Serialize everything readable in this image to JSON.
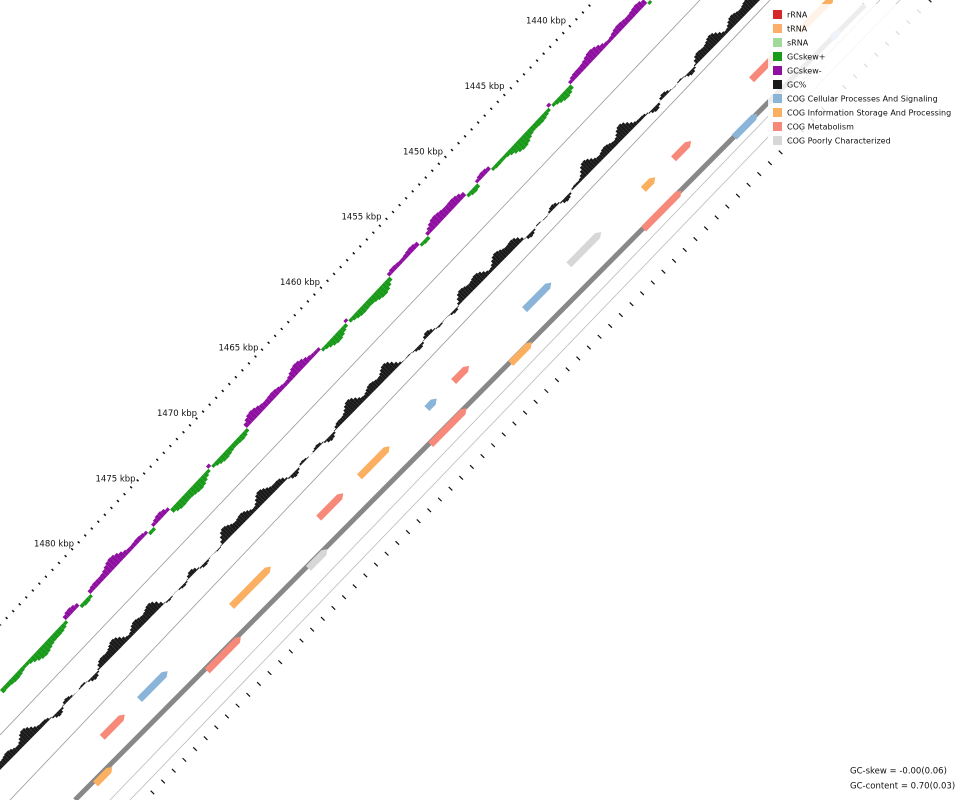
{
  "scale_labels": [
    "1440 kbp",
    "1445 kbp",
    "1450 kbp",
    "1455 kbp",
    "1460 kbp",
    "1465 kbp",
    "1470 kbp",
    "1475 kbp",
    "1480 kbp"
  ],
  "legend": [
    {
      "label": "rRNA",
      "color": "#d62728"
    },
    {
      "label": "tRNA",
      "color": "#fdae6b"
    },
    {
      "label": "sRNA",
      "color": "#a1d99b"
    },
    {
      "label": "GCskew+",
      "color": "#1a9a1a"
    },
    {
      "label": "GCskew-",
      "color": "#8e0fa0"
    },
    {
      "label": "GC%",
      "color": "#1a1a1a"
    },
    {
      "label": "COG Cellular Processes And Signaling",
      "color": "#8ab4d8"
    },
    {
      "label": "COG Information Storage And Processing",
      "color": "#fbb061"
    },
    {
      "label": "COG Metabolism",
      "color": "#f6897a"
    },
    {
      "label": "COG Poorly Characterized",
      "color": "#d7d7d7"
    }
  ],
  "footer": {
    "gc_skew": "GC-skew = -0.00(0.06)",
    "gc_content": "GC-content = 0.70(0.03)"
  }
}
